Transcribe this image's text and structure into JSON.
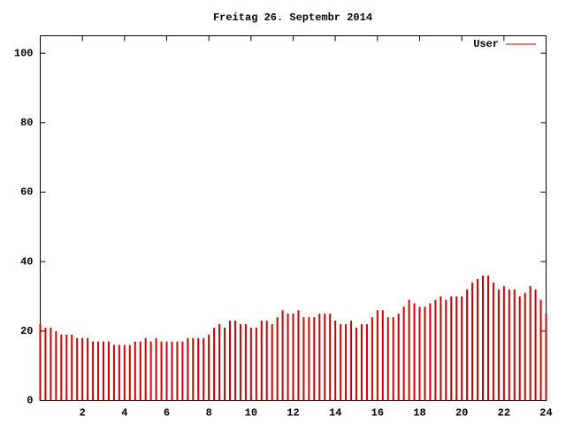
{
  "chart_data": {
    "type": "impulse",
    "title": "Freitag 26. Septembr 2014",
    "series": [
      {
        "name": "User",
        "color": "#cc0000",
        "x": [
          0,
          0.25,
          0.5,
          0.75,
          1,
          1.25,
          1.5,
          1.75,
          2,
          2.25,
          2.5,
          2.75,
          3,
          3.25,
          3.5,
          3.75,
          4,
          4.25,
          4.5,
          4.75,
          5,
          5.25,
          5.5,
          5.75,
          6,
          6.25,
          6.5,
          6.75,
          7,
          7.25,
          7.5,
          7.75,
          8,
          8.25,
          8.5,
          8.75,
          9,
          9.25,
          9.5,
          9.75,
          10,
          10.25,
          10.5,
          10.75,
          11,
          11.25,
          11.5,
          11.75,
          12,
          12.25,
          12.5,
          12.75,
          13,
          13.25,
          13.5,
          13.75,
          14,
          14.25,
          14.5,
          14.75,
          15,
          15.25,
          15.5,
          15.75,
          16,
          16.25,
          16.5,
          16.75,
          17,
          17.25,
          17.5,
          17.75,
          18,
          18.25,
          18.5,
          18.75,
          19,
          19.25,
          19.5,
          19.75,
          20,
          20.25,
          20.5,
          20.75,
          21,
          21.25,
          21.5,
          21.75,
          22,
          22.25,
          22.5,
          22.75,
          23,
          23.25,
          23.5,
          23.75,
          24
        ],
        "values": [
          22,
          21,
          21,
          20,
          19,
          19,
          19,
          18,
          18,
          18,
          17,
          17,
          17,
          17,
          16,
          16,
          16,
          16,
          17,
          17,
          18,
          17,
          18,
          17,
          17,
          17,
          17,
          17,
          18,
          18,
          18,
          18,
          19,
          21,
          22,
          21,
          23,
          23,
          22,
          22,
          21,
          21,
          23,
          23,
          22,
          24,
          26,
          25,
          25,
          26,
          24,
          24,
          24,
          25,
          25,
          25,
          23,
          22,
          22,
          23,
          21,
          22,
          22,
          24,
          26,
          26,
          24,
          24,
          25,
          27,
          29,
          28,
          27,
          27,
          28,
          29,
          30,
          29,
          30,
          30,
          30,
          32,
          34,
          35,
          36,
          36,
          34,
          32,
          33,
          32,
          32,
          30,
          31,
          33,
          32,
          29,
          25
        ]
      }
    ],
    "xlim": [
      0,
      24
    ],
    "xticks": [
      2,
      4,
      6,
      8,
      10,
      12,
      14,
      16,
      18,
      20,
      22,
      24
    ],
    "ylim": [
      0,
      105
    ],
    "yticks": [
      0,
      20,
      40,
      60,
      80,
      100
    ]
  }
}
